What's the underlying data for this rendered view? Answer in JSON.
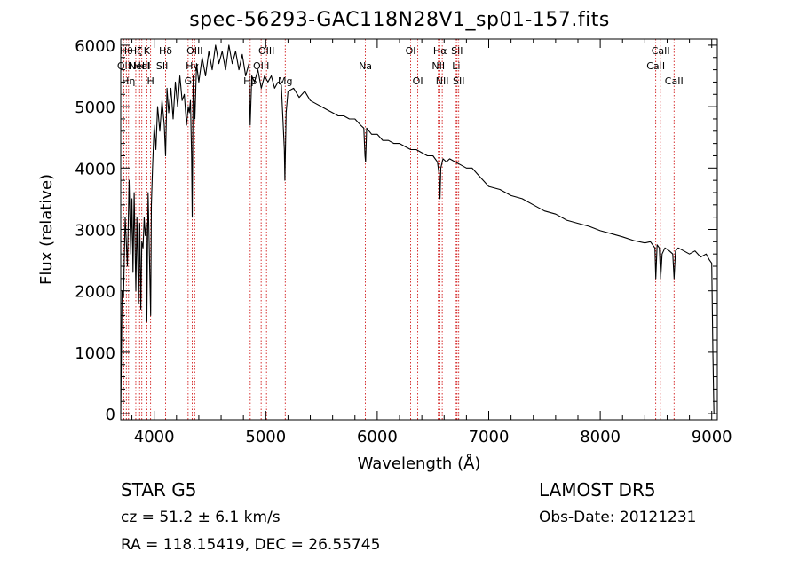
{
  "chart_data": {
    "type": "line",
    "title": "spec-56293-GAC118N28V1_sp01-157.fits",
    "xlabel": "Wavelength (Å)",
    "ylabel": "Flux (relative)",
    "xlim": [
      3700,
      9050
    ],
    "ylim": [
      -100,
      6100
    ],
    "xticks": [
      4000,
      5000,
      6000,
      7000,
      8000,
      9000
    ],
    "yticks": [
      0,
      1000,
      2000,
      3000,
      4000,
      5000,
      6000
    ],
    "grid": false,
    "line_color": "#000000",
    "marker_color": "#cc0000",
    "series": [
      {
        "x": [
          3700,
          3712,
          3725,
          3740,
          3760,
          3775,
          3790,
          3800,
          3810,
          3820,
          3835,
          3845,
          3860,
          3870,
          3880,
          3889,
          3900,
          3910,
          3920,
          3930,
          3934,
          3945,
          3955,
          3968,
          3975,
          3985,
          4000,
          4015,
          4030,
          4050,
          4070,
          4090,
          4102,
          4115,
          4130,
          4150,
          4170,
          4190,
          4210,
          4230,
          4250,
          4270,
          4290,
          4305,
          4315,
          4325,
          4335,
          4341,
          4350,
          4365,
          4380,
          4400,
          4430,
          4460,
          4490,
          4520,
          4550,
          4580,
          4610,
          4640,
          4670,
          4700,
          4730,
          4760,
          4790,
          4820,
          4850,
          4861,
          4875,
          4900,
          4930,
          4960,
          4990,
          5020,
          5050,
          5080,
          5110,
          5140,
          5167,
          5172,
          5183,
          5200,
          5250,
          5300,
          5350,
          5400,
          5450,
          5500,
          5550,
          5600,
          5650,
          5700,
          5750,
          5800,
          5850,
          5880,
          5890,
          5896,
          5905,
          5950,
          6000,
          6050,
          6100,
          6150,
          6200,
          6250,
          6300,
          6350,
          6400,
          6450,
          6500,
          6540,
          6555,
          6563,
          6570,
          6590,
          6620,
          6650,
          6700,
          6750,
          6800,
          6850,
          6900,
          6950,
          7000,
          7100,
          7200,
          7300,
          7400,
          7500,
          7600,
          7700,
          7800,
          7900,
          8000,
          8100,
          8200,
          8300,
          8400,
          8450,
          8490,
          8498,
          8510,
          8530,
          8542,
          8555,
          8580,
          8620,
          8650,
          8662,
          8675,
          8700,
          8750,
          8800,
          8850,
          8900,
          8950,
          8980,
          9000,
          9010,
          9020
        ],
        "y": [
          0,
          2000,
          1900,
          3200,
          2400,
          3800,
          2600,
          3500,
          2300,
          3600,
          2000,
          3200,
          1800,
          3100,
          1700,
          2800,
          2700,
          3200,
          2900,
          3100,
          1500,
          3600,
          2800,
          1600,
          3400,
          4000,
          4700,
          4300,
          5000,
          4600,
          5100,
          4700,
          4200,
          5300,
          4900,
          5300,
          4800,
          5400,
          5000,
          5500,
          5100,
          5200,
          4700,
          5000,
          4900,
          5100,
          4200,
          3200,
          5500,
          4800,
          5700,
          5400,
          5800,
          5500,
          5900,
          5600,
          6000,
          5700,
          5900,
          5600,
          6000,
          5700,
          5900,
          5600,
          5850,
          5500,
          5700,
          4700,
          5500,
          5400,
          5600,
          5300,
          5500,
          5400,
          5500,
          5300,
          5400,
          5350,
          4300,
          3800,
          4900,
          5250,
          5300,
          5150,
          5250,
          5100,
          5050,
          5000,
          4950,
          4900,
          4850,
          4850,
          4800,
          4800,
          4700,
          4650,
          4200,
          4100,
          4650,
          4550,
          4550,
          4450,
          4450,
          4400,
          4400,
          4350,
          4300,
          4300,
          4250,
          4200,
          4200,
          4100,
          3900,
          3500,
          4000,
          4150,
          4100,
          4150,
          4100,
          4050,
          4000,
          4000,
          3900,
          3800,
          3700,
          3650,
          3550,
          3500,
          3400,
          3300,
          3250,
          3150,
          3100,
          3050,
          2980,
          2930,
          2880,
          2820,
          2780,
          2800,
          2700,
          2200,
          2750,
          2700,
          2200,
          2600,
          2700,
          2650,
          2600,
          2200,
          2650,
          2700,
          2650,
          2600,
          2650,
          2550,
          2600,
          2500,
          2450,
          1000,
          0
        ]
      }
    ],
    "lines": [
      {
        "x": 3727,
        "label": "OII",
        "row": 1
      },
      {
        "x": 3750,
        "label": "Hθ",
        "row": 0
      },
      {
        "x": 3770,
        "label": "Hη",
        "row": 2
      },
      {
        "x": 3835,
        "label": "Hζ",
        "row": 0
      },
      {
        "x": 3869,
        "label": "NeIII",
        "row": 1
      },
      {
        "x": 3889,
        "label": "HeI",
        "row": 1
      },
      {
        "x": 3934,
        "label": "K",
        "row": 0
      },
      {
        "x": 3968,
        "label": "H",
        "row": 2
      },
      {
        "x": 4071,
        "label": "SII",
        "row": 1
      },
      {
        "x": 4102,
        "label": "Hδ",
        "row": 0
      },
      {
        "x": 4304,
        "label": "G",
        "row": 2
      },
      {
        "x": 4341,
        "label": "Hγ",
        "row": 1
      },
      {
        "x": 4363,
        "label": "OIII",
        "row": 0
      },
      {
        "x": 4861,
        "label": "Hβ",
        "row": 2
      },
      {
        "x": 4959,
        "label": "OIII",
        "row": 1
      },
      {
        "x": 5007,
        "label": "OIII",
        "row": 0
      },
      {
        "x": 5175,
        "label": "Mg",
        "row": 2
      },
      {
        "x": 5894,
        "label": "Na",
        "row": 1
      },
      {
        "x": 6300,
        "label": "OI",
        "row": 0
      },
      {
        "x": 6364,
        "label": "OI",
        "row": 2
      },
      {
        "x": 6548,
        "label": "NII",
        "row": 1
      },
      {
        "x": 6563,
        "label": "Hα",
        "row": 0
      },
      {
        "x": 6583,
        "label": "NII",
        "row": 2
      },
      {
        "x": 6708,
        "label": "Li",
        "row": 1
      },
      {
        "x": 6716,
        "label": "SII",
        "row": 0
      },
      {
        "x": 6731,
        "label": "SII",
        "row": 2
      },
      {
        "x": 8498,
        "label": "CaII",
        "row": 1
      },
      {
        "x": 8542,
        "label": "CaII",
        "row": 0
      },
      {
        "x": 8662,
        "label": "CaII",
        "row": 2
      }
    ]
  },
  "info": {
    "class_line": "STAR    G5",
    "survey": "LAMOST DR5",
    "cz": "cz = 51.2 ± 6.1 km/s",
    "obs_date": "Obs-Date: 20121231",
    "coords": "RA = 118.15419, DEC =  26.55745"
  }
}
